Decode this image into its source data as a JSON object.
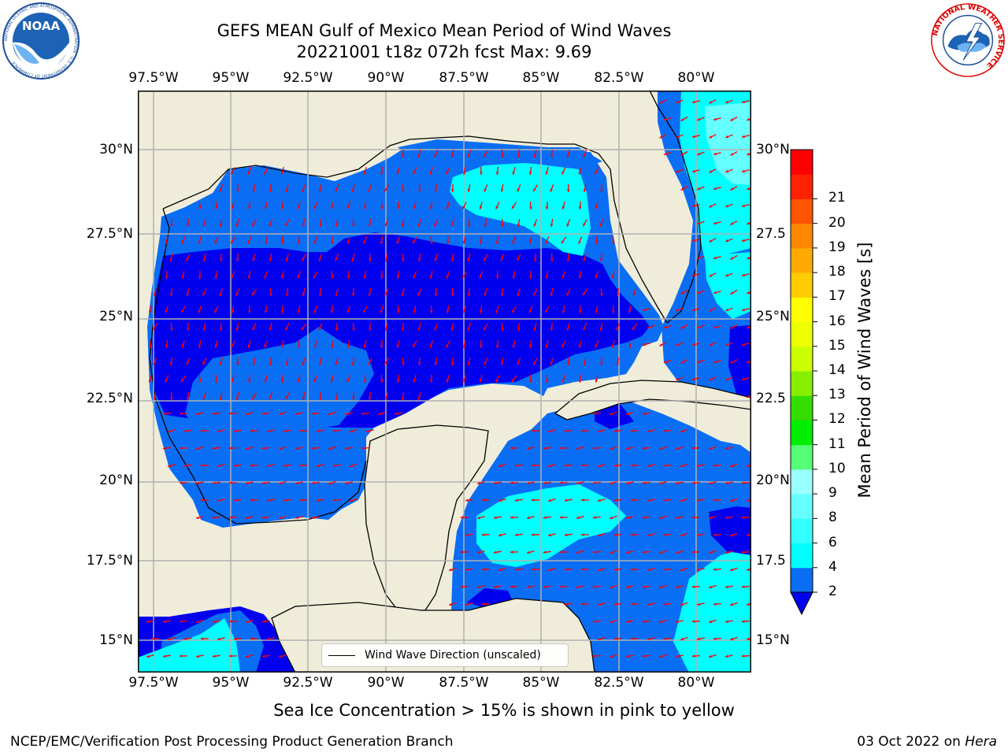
{
  "title_line1": "GEFS MEAN Gulf of Mexico Mean Period of Wind Waves",
  "title_line2": "20221001 t18z 072h fcst   Max: 9.69",
  "logo_left_name": "NOAA",
  "logo_left_ring_text": "NATIONAL OCEANIC AND ATMOSPHERIC ADMINISTRATION · U.S. DEPARTMENT OF COMMERCE",
  "logo_right_ring_text": "NATIONAL WEATHER SERVICE",
  "lon_labels": [
    "97.5°W",
    "95°W",
    "92.5°W",
    "90°W",
    "87.5°W",
    "85°W",
    "82.5°W",
    "80°W"
  ],
  "lat_labels_left": [
    "30°N",
    "27.5°N",
    "25°N",
    "22.5°N",
    "20°N",
    "17.5°N",
    "15°N"
  ],
  "lat_labels_right": [
    "30°N",
    "27.5",
    "25°N",
    "22.5",
    "20°N",
    "17.5",
    "15°N"
  ],
  "legend": {
    "label": "Wind Wave Direction (unscaled)"
  },
  "colorbar": {
    "label": "Mean Period of Wind Waves [s]",
    "ticks": [
      "2",
      "4",
      "6",
      "8",
      "9",
      "10",
      "11",
      "12",
      "13",
      "14",
      "15",
      "16",
      "17",
      "18",
      "19",
      "20",
      "21"
    ],
    "colors": [
      "#0a6ef5",
      "#00ffff",
      "#33ffff",
      "#66ffff",
      "#99ffff",
      "#55ff77",
      "#00ee00",
      "#33dd00",
      "#88ee00",
      "#ccff00",
      "#eeff00",
      "#ffff00",
      "#ffcc00",
      "#ffaa00",
      "#ff8800",
      "#ff5500",
      "#ff2200",
      "#ff0000"
    ],
    "extend_color": "#0000ee"
  },
  "colors": {
    "land": "#efedda",
    "very_short_period": "#0000ee",
    "short_period": "#0a6ef5",
    "mid_period": "#00ffff",
    "arrow": "#ff0000"
  },
  "note": "Sea Ice Concentration > 15% is shown in pink to yellow",
  "footer_left": "NCEP/EMC/Verification Post Processing Product Generation Branch",
  "footer_date": "03 Oct 2022 on",
  "footer_host": "Hera"
}
